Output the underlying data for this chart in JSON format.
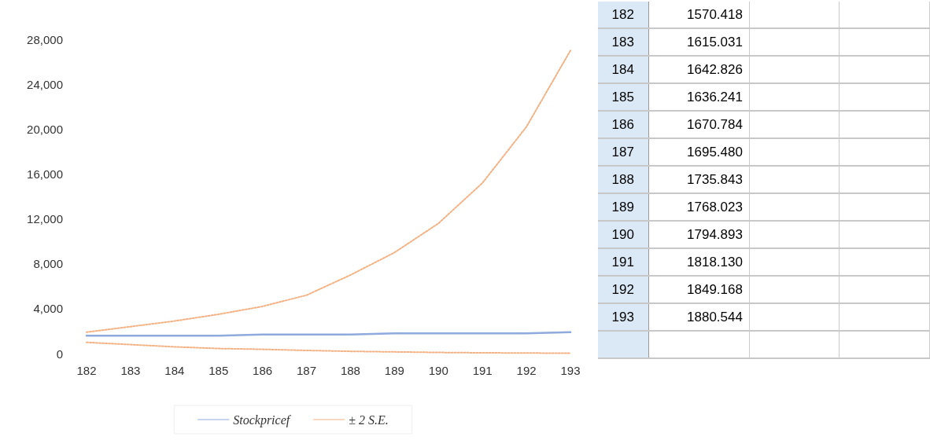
{
  "chart_data": {
    "type": "line",
    "categories": [
      "182",
      "183",
      "184",
      "185",
      "186",
      "187",
      "188",
      "189",
      "190",
      "191",
      "192",
      "193"
    ],
    "series": [
      {
        "name": "Stockpricef",
        "color": "#8faadc",
        "line_style": "solid",
        "values": [
          1600,
          1600,
          1600,
          1600,
          1700,
          1700,
          1700,
          1800,
          1800,
          1800,
          1800,
          1900
        ]
      },
      {
        "name": "± 2 S.E.",
        "color": "#f4b183",
        "line_style": "dotted",
        "values": [
          1900,
          2400,
          2900,
          3500,
          4200,
          5200,
          7000,
          9000,
          11600,
          15200,
          20200,
          27000
        ]
      },
      {
        "color": "#f4b183",
        "line_style": "dotted",
        "values": [
          1000,
          800,
          600,
          450,
          380,
          280,
          200,
          150,
          100,
          70,
          50,
          30
        ]
      }
    ],
    "ylim": [
      0,
      28000
    ],
    "yticks": [
      0,
      {
        "value": 4000,
        "label": "4,000"
      },
      {
        "value": 8000,
        "label": "8,000"
      },
      {
        "value": 12000,
        "label": "12,000"
      },
      {
        "value": 16000,
        "label": "16,000"
      },
      {
        "value": 20000,
        "label": "20,000"
      },
      {
        "value": 24000,
        "label": "24,000"
      },
      {
        "value": 28000,
        "label": "28,000"
      }
    ],
    "legend": "bottom",
    "marker": "none",
    "grid": false,
    "annotations": [
      "182",
      "1570.418",
      "183",
      "1615.031",
      "184",
      "1642.826",
      "185",
      "1636.241",
      "186",
      "1670.784",
      "187",
      "1695.480",
      "188",
      "1735.843",
      "189",
      "1768.023",
      "190",
      "1794.893",
      "191",
      "1818.130",
      "192",
      "1849.168",
      "193",
      "1880.544"
    ]
  }
}
